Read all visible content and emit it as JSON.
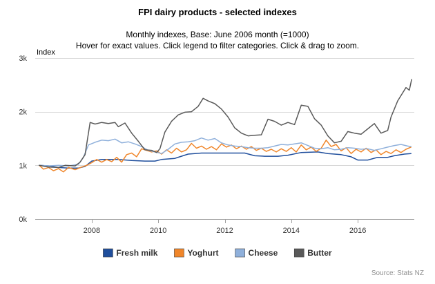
{
  "chart_data": {
    "type": "line",
    "title": "FPI dairy products - selected indexes",
    "subtitle_line1": "Monthly indexes, Base: June 2006 month (=1000)",
    "subtitle_line2": "Hover for exact values. Click legend to filter categories. Click & drag to zoom.",
    "ylabel": "Index",
    "xlabel": "",
    "credit": "Source: Stats NZ",
    "x_range": [
      2006.3,
      2017.7
    ],
    "ylim": [
      0,
      3000
    ],
    "y_ticks": [
      0,
      1000,
      2000,
      3000
    ],
    "y_tick_labels": [
      "0k",
      "1k",
      "2k",
      "3k"
    ],
    "x_ticks": [
      2008,
      2010,
      2012,
      2014,
      2016
    ],
    "x_tick_labels": [
      "2008",
      "2010",
      "2012",
      "2014",
      "2016"
    ],
    "grid": true,
    "legend_position": "bottom",
    "series": [
      {
        "name": "Fresh milk",
        "color": "#1f4e9c",
        "points": [
          [
            2006.42,
            1000
          ],
          [
            2006.7,
            990
          ],
          [
            2007.0,
            960
          ],
          [
            2007.3,
            950
          ],
          [
            2007.6,
            950
          ],
          [
            2007.8,
            980
          ],
          [
            2008.0,
            1080
          ],
          [
            2008.3,
            1110
          ],
          [
            2008.8,
            1110
          ],
          [
            2009.2,
            1090
          ],
          [
            2009.6,
            1080
          ],
          [
            2009.9,
            1080
          ],
          [
            2010.1,
            1110
          ],
          [
            2010.5,
            1130
          ],
          [
            2010.9,
            1210
          ],
          [
            2011.3,
            1230
          ],
          [
            2011.8,
            1230
          ],
          [
            2012.3,
            1230
          ],
          [
            2012.6,
            1230
          ],
          [
            2012.9,
            1180
          ],
          [
            2013.2,
            1170
          ],
          [
            2013.6,
            1170
          ],
          [
            2013.9,
            1190
          ],
          [
            2014.3,
            1240
          ],
          [
            2014.8,
            1250
          ],
          [
            2015.1,
            1220
          ],
          [
            2015.5,
            1200
          ],
          [
            2015.8,
            1160
          ],
          [
            2016.0,
            1100
          ],
          [
            2016.3,
            1100
          ],
          [
            2016.6,
            1150
          ],
          [
            2016.9,
            1150
          ],
          [
            2017.1,
            1180
          ],
          [
            2017.4,
            1210
          ],
          [
            2017.6,
            1220
          ]
        ]
      },
      {
        "name": "Yoghurt",
        "color": "#f0862a",
        "points": [
          [
            2006.42,
            1000
          ],
          [
            2006.55,
            930
          ],
          [
            2006.7,
            960
          ],
          [
            2006.85,
            900
          ],
          [
            2007.0,
            940
          ],
          [
            2007.15,
            880
          ],
          [
            2007.3,
            960
          ],
          [
            2007.5,
            920
          ],
          [
            2007.7,
            970
          ],
          [
            2007.85,
            1000
          ],
          [
            2008.0,
            1050
          ],
          [
            2008.15,
            1110
          ],
          [
            2008.3,
            1060
          ],
          [
            2008.45,
            1110
          ],
          [
            2008.6,
            1070
          ],
          [
            2008.75,
            1150
          ],
          [
            2008.9,
            1060
          ],
          [
            2009.05,
            1200
          ],
          [
            2009.2,
            1230
          ],
          [
            2009.35,
            1160
          ],
          [
            2009.5,
            1310
          ],
          [
            2009.65,
            1280
          ],
          [
            2009.8,
            1250
          ],
          [
            2009.95,
            1270
          ],
          [
            2010.1,
            1210
          ],
          [
            2010.25,
            1290
          ],
          [
            2010.4,
            1230
          ],
          [
            2010.55,
            1320
          ],
          [
            2010.7,
            1250
          ],
          [
            2010.85,
            1290
          ],
          [
            2011.0,
            1410
          ],
          [
            2011.15,
            1320
          ],
          [
            2011.3,
            1360
          ],
          [
            2011.45,
            1300
          ],
          [
            2011.6,
            1350
          ],
          [
            2011.75,
            1290
          ],
          [
            2011.9,
            1400
          ],
          [
            2012.05,
            1340
          ],
          [
            2012.2,
            1380
          ],
          [
            2012.35,
            1310
          ],
          [
            2012.5,
            1360
          ],
          [
            2012.65,
            1300
          ],
          [
            2012.8,
            1350
          ],
          [
            2012.95,
            1280
          ],
          [
            2013.1,
            1320
          ],
          [
            2013.25,
            1260
          ],
          [
            2013.4,
            1300
          ],
          [
            2013.55,
            1250
          ],
          [
            2013.7,
            1310
          ],
          [
            2013.85,
            1260
          ],
          [
            2014.0,
            1330
          ],
          [
            2014.15,
            1250
          ],
          [
            2014.3,
            1380
          ],
          [
            2014.45,
            1290
          ],
          [
            2014.6,
            1340
          ],
          [
            2014.75,
            1260
          ],
          [
            2014.9,
            1320
          ],
          [
            2015.05,
            1470
          ],
          [
            2015.2,
            1350
          ],
          [
            2015.35,
            1390
          ],
          [
            2015.5,
            1270
          ],
          [
            2015.65,
            1330
          ],
          [
            2015.8,
            1220
          ],
          [
            2015.95,
            1300
          ],
          [
            2016.1,
            1250
          ],
          [
            2016.25,
            1320
          ],
          [
            2016.4,
            1240
          ],
          [
            2016.55,
            1290
          ],
          [
            2016.7,
            1200
          ],
          [
            2016.85,
            1260
          ],
          [
            2017.0,
            1220
          ],
          [
            2017.15,
            1290
          ],
          [
            2017.3,
            1240
          ],
          [
            2017.45,
            1300
          ],
          [
            2017.6,
            1340
          ]
        ]
      },
      {
        "name": "Cheese",
        "color": "#8fb0db",
        "points": [
          [
            2006.42,
            1000
          ],
          [
            2006.7,
            990
          ],
          [
            2007.0,
            1000
          ],
          [
            2007.3,
            990
          ],
          [
            2007.6,
            1020
          ],
          [
            2007.75,
            1150
          ],
          [
            2007.9,
            1380
          ],
          [
            2008.1,
            1430
          ],
          [
            2008.3,
            1470
          ],
          [
            2008.5,
            1460
          ],
          [
            2008.7,
            1490
          ],
          [
            2008.9,
            1420
          ],
          [
            2009.1,
            1440
          ],
          [
            2009.3,
            1400
          ],
          [
            2009.5,
            1350
          ],
          [
            2009.7,
            1280
          ],
          [
            2009.9,
            1250
          ],
          [
            2010.1,
            1220
          ],
          [
            2010.3,
            1300
          ],
          [
            2010.5,
            1400
          ],
          [
            2010.7,
            1430
          ],
          [
            2010.9,
            1440
          ],
          [
            2011.1,
            1460
          ],
          [
            2011.3,
            1510
          ],
          [
            2011.5,
            1470
          ],
          [
            2011.7,
            1500
          ],
          [
            2011.9,
            1420
          ],
          [
            2012.1,
            1380
          ],
          [
            2012.3,
            1360
          ],
          [
            2012.5,
            1350
          ],
          [
            2012.7,
            1330
          ],
          [
            2012.9,
            1320
          ],
          [
            2013.1,
            1320
          ],
          [
            2013.3,
            1330
          ],
          [
            2013.5,
            1360
          ],
          [
            2013.7,
            1390
          ],
          [
            2013.9,
            1380
          ],
          [
            2014.1,
            1400
          ],
          [
            2014.3,
            1420
          ],
          [
            2014.5,
            1370
          ],
          [
            2014.7,
            1320
          ],
          [
            2014.9,
            1310
          ],
          [
            2015.1,
            1330
          ],
          [
            2015.3,
            1290
          ],
          [
            2015.5,
            1300
          ],
          [
            2015.7,
            1330
          ],
          [
            2015.9,
            1320
          ],
          [
            2016.1,
            1300
          ],
          [
            2016.3,
            1310
          ],
          [
            2016.5,
            1280
          ],
          [
            2016.7,
            1310
          ],
          [
            2016.9,
            1340
          ],
          [
            2017.1,
            1370
          ],
          [
            2017.3,
            1390
          ],
          [
            2017.5,
            1360
          ],
          [
            2017.6,
            1350
          ]
        ]
      },
      {
        "name": "Butter",
        "color": "#595959",
        "points": [
          [
            2006.42,
            1000
          ],
          [
            2006.7,
            970
          ],
          [
            2007.0,
            960
          ],
          [
            2007.2,
            1000
          ],
          [
            2007.5,
            990
          ],
          [
            2007.65,
            1060
          ],
          [
            2007.8,
            1200
          ],
          [
            2007.95,
            1800
          ],
          [
            2008.1,
            1770
          ],
          [
            2008.3,
            1800
          ],
          [
            2008.5,
            1780
          ],
          [
            2008.7,
            1800
          ],
          [
            2008.8,
            1720
          ],
          [
            2009.0,
            1790
          ],
          [
            2009.2,
            1600
          ],
          [
            2009.4,
            1450
          ],
          [
            2009.6,
            1290
          ],
          [
            2009.8,
            1280
          ],
          [
            2009.95,
            1240
          ],
          [
            2010.05,
            1310
          ],
          [
            2010.2,
            1620
          ],
          [
            2010.4,
            1820
          ],
          [
            2010.6,
            1940
          ],
          [
            2010.8,
            1990
          ],
          [
            2011.0,
            2000
          ],
          [
            2011.2,
            2100
          ],
          [
            2011.35,
            2250
          ],
          [
            2011.5,
            2200
          ],
          [
            2011.7,
            2150
          ],
          [
            2011.9,
            2050
          ],
          [
            2012.1,
            1900
          ],
          [
            2012.3,
            1700
          ],
          [
            2012.5,
            1600
          ],
          [
            2012.7,
            1550
          ],
          [
            2012.9,
            1560
          ],
          [
            2013.1,
            1570
          ],
          [
            2013.3,
            1860
          ],
          [
            2013.5,
            1820
          ],
          [
            2013.7,
            1750
          ],
          [
            2013.9,
            1800
          ],
          [
            2014.1,
            1760
          ],
          [
            2014.3,
            2120
          ],
          [
            2014.5,
            2100
          ],
          [
            2014.7,
            1870
          ],
          [
            2014.9,
            1750
          ],
          [
            2015.1,
            1550
          ],
          [
            2015.3,
            1420
          ],
          [
            2015.5,
            1450
          ],
          [
            2015.7,
            1630
          ],
          [
            2015.9,
            1600
          ],
          [
            2016.1,
            1580
          ],
          [
            2016.3,
            1680
          ],
          [
            2016.5,
            1780
          ],
          [
            2016.7,
            1600
          ],
          [
            2016.9,
            1650
          ],
          [
            2017.0,
            1900
          ],
          [
            2017.1,
            2050
          ],
          [
            2017.2,
            2200
          ],
          [
            2017.35,
            2350
          ],
          [
            2017.45,
            2450
          ],
          [
            2017.55,
            2400
          ],
          [
            2017.62,
            2600
          ]
        ]
      }
    ]
  }
}
